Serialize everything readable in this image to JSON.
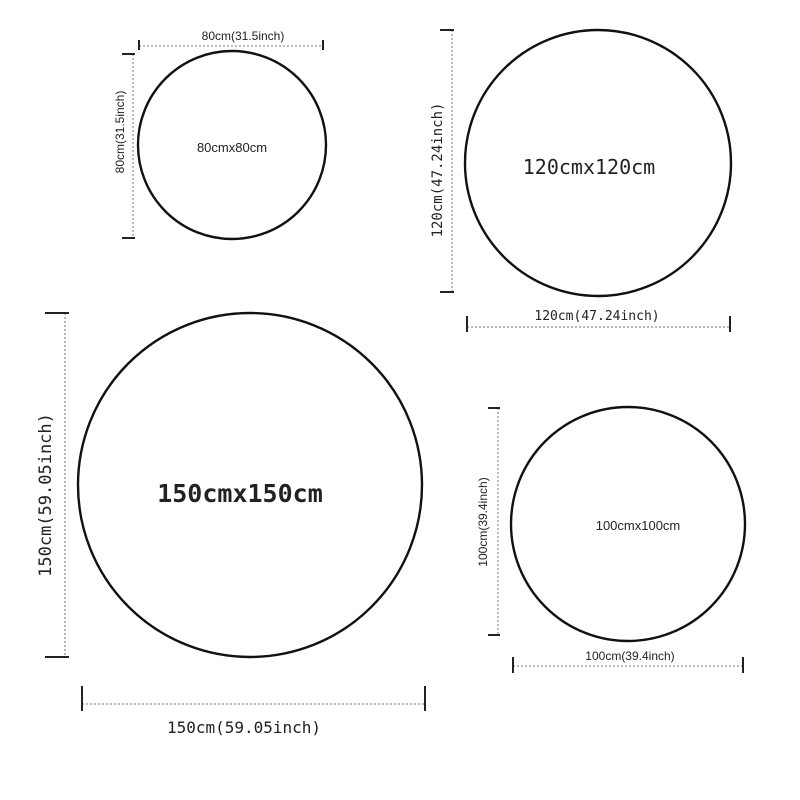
{
  "circles": [
    {
      "size_label": "80cmx80cm",
      "width_label": "80cm(31.5inch)",
      "height_label": "80cm(31.5inch)"
    },
    {
      "size_label": "120cmx120cm",
      "width_label": "120cm(47.24inch)",
      "height_label": "120cm(47.24inch)"
    },
    {
      "size_label": "150cmx150cm",
      "width_label": "150cm(59.05inch)",
      "height_label": "150cm(59.05inch)"
    },
    {
      "size_label": "100cmx100cm",
      "width_label": "100cm(39.4inch)",
      "height_label": "100cm(39.4inch)"
    }
  ],
  "colors": {
    "ring": "#111111",
    "dimension_line": "#777777"
  }
}
